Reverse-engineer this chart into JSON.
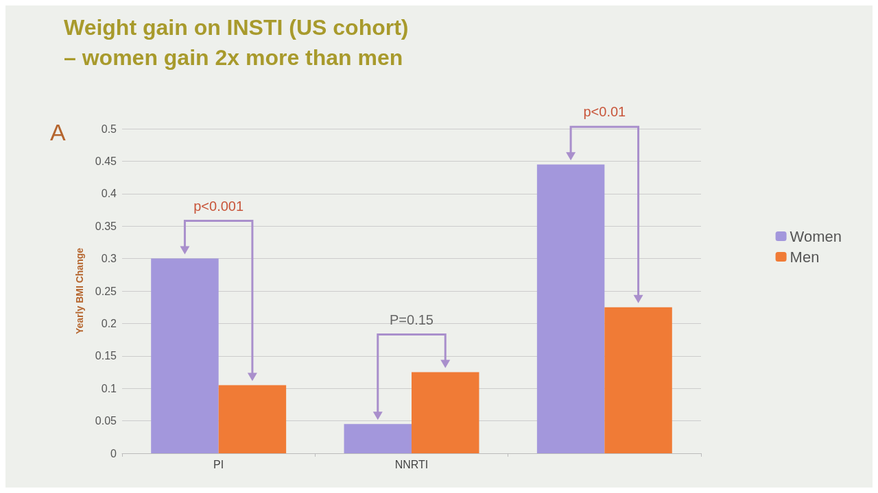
{
  "chart_data": {
    "type": "bar",
    "title": "Weight gain on INSTI (US cohort)\n– women gain 2x more than men",
    "ylabel": "Yearly BMI Change",
    "categories": [
      "PI",
      "NNRTI",
      null
    ],
    "series": [
      {
        "name": "Women",
        "color": "#a397dc",
        "values": [
          0.3,
          0.045,
          0.445
        ]
      },
      {
        "name": "Men",
        "color": "#f07b36",
        "values": [
          0.105,
          0.125,
          0.225
        ]
      }
    ],
    "annotations": [
      "A",
      "p<0.001",
      "P=0.15",
      "p<0.01"
    ],
    "ylim": [
      0,
      0.5
    ],
    "yticks": [
      0,
      0.05,
      0.1,
      0.15,
      0.2,
      0.25,
      0.3,
      0.35,
      0.4,
      0.45,
      0.5
    ],
    "grid": "y",
    "legend": "right"
  }
}
